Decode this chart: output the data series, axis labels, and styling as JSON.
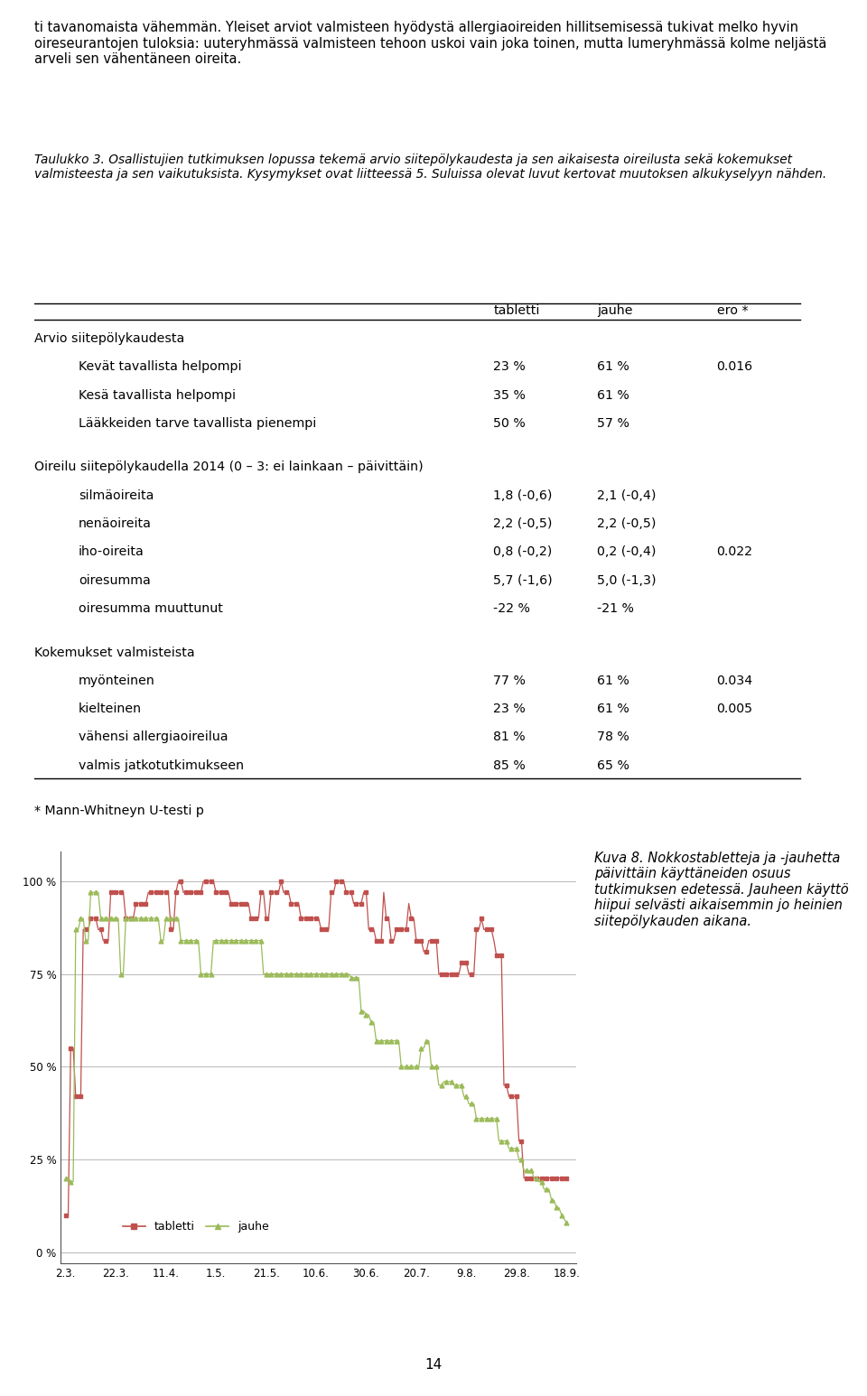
{
  "paragraph1": "ti tavanomaista vähemmän. Yleiset arviot valmisteen hyödystä allergiaoireiden hillitsemisessä tukivat melko hyvin oireseurantojen tuloksia: uuteryhmässä valmisteen tehoon uskoi vain joka toinen, mutta lumeryhmässä kolme neljästä arveli sen vähentäneen oireita.",
  "table_caption": "Taulukko 3. Osallistujien tutkimuksen lopussa tekemä arvio siitepölykaudesta ja sen aikaisesta oireilusta sekä kokemukset valmisteesta ja sen vaikutuksista. Kysymykset ovat liitteessä 5. Suluissa olevat luvut kertovat muutoksen alkukyselyyn nähden.",
  "table_header": [
    "",
    "tabletti",
    "jauhe",
    "ero *"
  ],
  "table_rows": [
    {
      "label": "Arvio siitepölykaudesta",
      "indent": 0,
      "tabletti": "",
      "jauhe": "",
      "ero": ""
    },
    {
      "label": "Kevät tavallista helpompi",
      "indent": 1,
      "tabletti": "23 %",
      "jauhe": "61 %",
      "ero": "0.016"
    },
    {
      "label": "Kesä tavallista helpompi",
      "indent": 1,
      "tabletti": "35 %",
      "jauhe": "61 %",
      "ero": ""
    },
    {
      "label": "Lääkkeiden tarve tavallista pienempi",
      "indent": 1,
      "tabletti": "50 %",
      "jauhe": "57 %",
      "ero": ""
    },
    {
      "label": "",
      "indent": 0,
      "tabletti": "",
      "jauhe": "",
      "ero": ""
    },
    {
      "label": "Oireilu siitepölykaudella 2014 (0 – 3: ei lainkaan – päivittäin)",
      "indent": 0,
      "tabletti": "",
      "jauhe": "",
      "ero": ""
    },
    {
      "label": "silmäoireita",
      "indent": 1,
      "tabletti": "1,8 (-0,6)",
      "jauhe": "2,1 (-0,4)",
      "ero": ""
    },
    {
      "label": "nenäoireita",
      "indent": 1,
      "tabletti": "2,2 (-0,5)",
      "jauhe": "2,2 (-0,5)",
      "ero": ""
    },
    {
      "label": "iho-oireita",
      "indent": 1,
      "tabletti": "0,8 (-0,2)",
      "jauhe": "0,2 (-0,4)",
      "ero": "0.022"
    },
    {
      "label": "oiresumma",
      "indent": 1,
      "tabletti": "5,7 (-1,6)",
      "jauhe": "5,0 (-1,3)",
      "ero": ""
    },
    {
      "label": "oiresumma muuttunut",
      "indent": 1,
      "tabletti": "-22 %",
      "jauhe": "-21 %",
      "ero": ""
    },
    {
      "label": "",
      "indent": 0,
      "tabletti": "",
      "jauhe": "",
      "ero": ""
    },
    {
      "label": "Kokemukset valmisteista",
      "indent": 0,
      "tabletti": "",
      "jauhe": "",
      "ero": ""
    },
    {
      "label": "myönteinen",
      "indent": 1,
      "tabletti": "77 %",
      "jauhe": "61 %",
      "ero": "0.034"
    },
    {
      "label": "kielteinen",
      "indent": 1,
      "tabletti": "23 %",
      "jauhe": "61 %",
      "ero": "0.005"
    },
    {
      "label": "vähensi allergiaoireilua",
      "indent": 1,
      "tabletti": "81 %",
      "jauhe": "78 %",
      "ero": ""
    },
    {
      "label": "valmis jatkotutkimukseen",
      "indent": 1,
      "tabletti": "85 %",
      "jauhe": "65 %",
      "ero": ""
    }
  ],
  "table_footnote": "* Mann-Whitneyn U-testi p",
  "chart_xlabel_ticks": [
    "2.3.",
    "22.3.",
    "11.4.",
    "1.5.",
    "21.5.",
    "10.6.",
    "30.6.",
    "20.7.",
    "9.8.",
    "29.8.",
    "18.9."
  ],
  "chart_yticks": [
    "0 %",
    "25 %",
    "50 %",
    "75 %",
    "100 %"
  ],
  "chart_ytick_vals": [
    0,
    25,
    50,
    75,
    100
  ],
  "tabletti_color": "#C0504D",
  "jauhe_color": "#9BBB59",
  "caption_right": "Kuva 8. Nokkostabletteja ja -jauhetta päivittäin käyttäneiden osuus tutkimuksen edetessä. Jauheen käyttö hiipui selvästi aikaisemmin jo heinien siitepölykauden aikana.",
  "tabletti_x": [
    0,
    1,
    2,
    3,
    4,
    5,
    6,
    7,
    8,
    9,
    10,
    11,
    12,
    13,
    14,
    15,
    16,
    17,
    18,
    19,
    20,
    21,
    22,
    23,
    24,
    25,
    26,
    27,
    28,
    29,
    30,
    31,
    32,
    33,
    34,
    35,
    36,
    37,
    38,
    39,
    40,
    41,
    42,
    43,
    44,
    45,
    46,
    47,
    48,
    49,
    50,
    51,
    52,
    53,
    54,
    55,
    56,
    57,
    58,
    59,
    60,
    61,
    62,
    63,
    64,
    65,
    66,
    67,
    68,
    69,
    70,
    71,
    72,
    73,
    74,
    75,
    76,
    77,
    78,
    79,
    80,
    81,
    82,
    83,
    84,
    85,
    86,
    87,
    88,
    89,
    90,
    91,
    92,
    93,
    94,
    95,
    96,
    97,
    98,
    99,
    100,
    101,
    102,
    103,
    104,
    105,
    106,
    107,
    108,
    109,
    110,
    111,
    112,
    113,
    114,
    115,
    116,
    117,
    118,
    119,
    120,
    121,
    122,
    123,
    124,
    125,
    126,
    127,
    128,
    129,
    130,
    131,
    132,
    133,
    134,
    135,
    136,
    137,
    138,
    139,
    140,
    141,
    142,
    143,
    144,
    145,
    146,
    147,
    148,
    149,
    150,
    151,
    152,
    153,
    154,
    155,
    156,
    157,
    158,
    159,
    160,
    161,
    162,
    163,
    164,
    165,
    166,
    167,
    168,
    169,
    170,
    171,
    172,
    173,
    174,
    175,
    176,
    177,
    178,
    179,
    180,
    181,
    182,
    183,
    184,
    185,
    186,
    187,
    188,
    189,
    190,
    191,
    192,
    193,
    194,
    195,
    196,
    197,
    198,
    199,
    200
  ],
  "tabletti_y": [
    10,
    10,
    55,
    55,
    42,
    42,
    42,
    87,
    87,
    87,
    90,
    90,
    90,
    87,
    87,
    84,
    84,
    84,
    97,
    97,
    97,
    97,
    97,
    97,
    90,
    90,
    90,
    90,
    94,
    94,
    94,
    94,
    94,
    97,
    97,
    97,
    97,
    97,
    97,
    97,
    97,
    97,
    87,
    87,
    97,
    100,
    100,
    97,
    97,
    97,
    97,
    97,
    97,
    97,
    97,
    100,
    100,
    100,
    100,
    100,
    97,
    97,
    97,
    97,
    97,
    97,
    94,
    94,
    94,
    94,
    94,
    94,
    94,
    94,
    90,
    90,
    90,
    90,
    97,
    97,
    90,
    90,
    97,
    97,
    97,
    97,
    100,
    97,
    97,
    97,
    94,
    94,
    94,
    94,
    90,
    90,
    90,
    90,
    90,
    90,
    90,
    90,
    87,
    87,
    87,
    87,
    97,
    97,
    100,
    100,
    100,
    100,
    97,
    97,
    97,
    94,
    94,
    94,
    94,
    97,
    97,
    87,
    87,
    87,
    84,
    84,
    84,
    97,
    90,
    90,
    84,
    84,
    87,
    87,
    87,
    87,
    87,
    94,
    90,
    90,
    84,
    84,
    84,
    81,
    81,
    84,
    84,
    84,
    84,
    75,
    75,
    75,
    75,
    75,
    75,
    75,
    75,
    75,
    78,
    78,
    78,
    75,
    75,
    75,
    87,
    87,
    90,
    87,
    87,
    87,
    87,
    84,
    80,
    80,
    80,
    45,
    45,
    42,
    42,
    42,
    42,
    30,
    30,
    20,
    20,
    20,
    20,
    20,
    20,
    20,
    20,
    20,
    20,
    20,
    20,
    20,
    20,
    20,
    20,
    20,
    20
  ],
  "jauhe_x": [
    0,
    1,
    2,
    3,
    4,
    5,
    6,
    7,
    8,
    9,
    10,
    11,
    12,
    13,
    14,
    15,
    16,
    17,
    18,
    19,
    20,
    21,
    22,
    23,
    24,
    25,
    26,
    27,
    28,
    29,
    30,
    31,
    32,
    33,
    34,
    35,
    36,
    37,
    38,
    39,
    40,
    41,
    42,
    43,
    44,
    45,
    46,
    47,
    48,
    49,
    50,
    51,
    52,
    53,
    54,
    55,
    56,
    57,
    58,
    59,
    60,
    61,
    62,
    63,
    64,
    65,
    66,
    67,
    68,
    69,
    70,
    71,
    72,
    73,
    74,
    75,
    76,
    77,
    78,
    79,
    80,
    81,
    82,
    83,
    84,
    85,
    86,
    87,
    88,
    89,
    90,
    91,
    92,
    93,
    94,
    95,
    96,
    97,
    98,
    99,
    100,
    101,
    102,
    103,
    104,
    105,
    106,
    107,
    108,
    109,
    110,
    111,
    112,
    113,
    114,
    115,
    116,
    117,
    118,
    119,
    120,
    121,
    122,
    123,
    124,
    125,
    126,
    127,
    128,
    129,
    130,
    131,
    132,
    133,
    134,
    135,
    136,
    137,
    138,
    139,
    140,
    141,
    142,
    143,
    144,
    145,
    146,
    147,
    148,
    149,
    150,
    151,
    152,
    153,
    154,
    155,
    156,
    157,
    158,
    159,
    160,
    161,
    162,
    163,
    164,
    165,
    166,
    167,
    168,
    169,
    170,
    171,
    172,
    173,
    174,
    175,
    176,
    177,
    178,
    179,
    180,
    181,
    182,
    183,
    184,
    185,
    186,
    187,
    188,
    189,
    190,
    191,
    192,
    193,
    194,
    195,
    196,
    197,
    198,
    199,
    200
  ],
  "jauhe_y": [
    20,
    20,
    19,
    19,
    87,
    87,
    90,
    90,
    84,
    84,
    97,
    97,
    97,
    97,
    90,
    90,
    90,
    90,
    90,
    90,
    90,
    90,
    75,
    75,
    90,
    90,
    90,
    90,
    90,
    90,
    90,
    90,
    90,
    90,
    90,
    90,
    90,
    90,
    84,
    84,
    90,
    90,
    90,
    90,
    90,
    90,
    84,
    84,
    84,
    84,
    84,
    84,
    84,
    84,
    75,
    75,
    75,
    75,
    75,
    84,
    84,
    84,
    84,
    84,
    84,
    84,
    84,
    84,
    84,
    84,
    84,
    84,
    84,
    84,
    84,
    84,
    84,
    84,
    84,
    75,
    75,
    75,
    75,
    75,
    75,
    75,
    75,
    75,
    75,
    75,
    75,
    75,
    75,
    75,
    75,
    75,
    75,
    75,
    75,
    75,
    75,
    75,
    75,
    75,
    75,
    75,
    75,
    75,
    75,
    75,
    75,
    75,
    75,
    75,
    74,
    74,
    74,
    74,
    65,
    65,
    64,
    64,
    62,
    62,
    57,
    57,
    57,
    57,
    57,
    57,
    57,
    57,
    57,
    57,
    50,
    50,
    50,
    50,
    50,
    50,
    50,
    50,
    55,
    55,
    57,
    57,
    50,
    50,
    50,
    45,
    45,
    46,
    46,
    46,
    46,
    45,
    45,
    45,
    45,
    42,
    42,
    40,
    40,
    40,
    36,
    36,
    36,
    36,
    36,
    36,
    36,
    36,
    36,
    30,
    30,
    30,
    30,
    28,
    28,
    28,
    28,
    25,
    25,
    22,
    22,
    22,
    22,
    20,
    20,
    19,
    19,
    17,
    17,
    17,
    14,
    14,
    12,
    12,
    10,
    9,
    8
  ]
}
